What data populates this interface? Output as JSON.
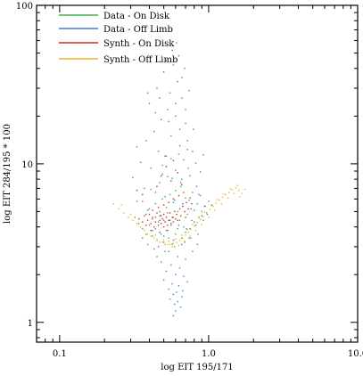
{
  "chart_data": {
    "type": "scatter",
    "title": "",
    "xlabel": "log EIT 195/171",
    "ylabel": "log EIT 284/195 * 100",
    "xscale": "log",
    "yscale": "log",
    "xlim": [
      0.07,
      10.0
    ],
    "ylim": [
      0.75,
      100
    ],
    "xticks": [
      {
        "value": 0.1,
        "label": "0.1"
      },
      {
        "value": 1.0,
        "label": "1.0"
      },
      {
        "value": 10.0,
        "label": "10.0"
      }
    ],
    "yticks": [
      {
        "value": 1,
        "label": "1"
      },
      {
        "value": 10,
        "label": "10"
      },
      {
        "value": 100,
        "label": "100"
      }
    ],
    "grid": false,
    "legend_position": "top-left",
    "series": [
      {
        "name": "Data - On Disk",
        "color": "#3cb043",
        "points": [
          [
            0.32,
            4.6
          ],
          [
            0.34,
            4.2
          ],
          [
            0.36,
            3.9
          ],
          [
            0.38,
            4.8
          ],
          [
            0.38,
            3.6
          ],
          [
            0.4,
            5.2
          ],
          [
            0.4,
            4.1
          ],
          [
            0.42,
            3.5
          ],
          [
            0.42,
            4.6
          ],
          [
            0.44,
            5.6
          ],
          [
            0.44,
            3.9
          ],
          [
            0.45,
            3.3
          ],
          [
            0.46,
            4.3
          ],
          [
            0.47,
            5.0
          ],
          [
            0.48,
            3.6
          ],
          [
            0.49,
            6.0
          ],
          [
            0.5,
            4.4
          ],
          [
            0.5,
            3.2
          ],
          [
            0.52,
            5.3
          ],
          [
            0.52,
            3.8
          ],
          [
            0.53,
            4.9
          ],
          [
            0.54,
            3.4
          ],
          [
            0.55,
            6.4
          ],
          [
            0.56,
            4.1
          ],
          [
            0.57,
            3.1
          ],
          [
            0.58,
            5.7
          ],
          [
            0.58,
            4.6
          ],
          [
            0.6,
            3.6
          ],
          [
            0.6,
            6.8
          ],
          [
            0.62,
            5.0
          ],
          [
            0.62,
            3.9
          ],
          [
            0.64,
            4.4
          ],
          [
            0.65,
            7.2
          ],
          [
            0.66,
            3.4
          ],
          [
            0.67,
            5.4
          ],
          [
            0.68,
            4.0
          ],
          [
            0.7,
            6.1
          ],
          [
            0.7,
            3.7
          ],
          [
            0.72,
            4.8
          ],
          [
            0.74,
            5.9
          ],
          [
            0.75,
            3.9
          ],
          [
            0.77,
            4.4
          ],
          [
            0.78,
            6.6
          ],
          [
            0.8,
            5.1
          ],
          [
            0.82,
            4.1
          ],
          [
            0.84,
            5.6
          ],
          [
            0.86,
            4.6
          ],
          [
            0.88,
            6.3
          ],
          [
            0.9,
            5.0
          ],
          [
            0.92,
            4.4
          ],
          [
            0.95,
            5.4
          ],
          [
            0.98,
            4.8
          ],
          [
            1.0,
            5.8
          ],
          [
            0.41,
            6.9
          ],
          [
            0.47,
            7.6
          ],
          [
            0.53,
            8.3
          ],
          [
            0.6,
            9.1
          ],
          [
            0.66,
            8.0
          ],
          [
            0.36,
            5.8
          ],
          [
            0.43,
            2.9
          ],
          [
            0.51,
            2.8
          ],
          [
            0.59,
            3.0
          ],
          [
            0.69,
            3.2
          ],
          [
            0.76,
            3.4
          ],
          [
            0.63,
            11.5
          ],
          [
            0.56,
            10.8
          ],
          [
            0.49,
            9.8
          ],
          [
            0.73,
            9.4
          ],
          [
            0.39,
            3.1
          ],
          [
            0.85,
            3.6
          ]
        ]
      },
      {
        "name": "Data - Off Limb",
        "color": "#3b7fd4",
        "points": [
          [
            0.4,
            24
          ],
          [
            0.45,
            30
          ],
          [
            0.5,
            38
          ],
          [
            0.55,
            28
          ],
          [
            0.58,
            42
          ],
          [
            0.62,
            33
          ],
          [
            0.66,
            26
          ],
          [
            0.48,
            19
          ],
          [
            0.53,
            22
          ],
          [
            0.6,
            20
          ],
          [
            0.7,
            18
          ],
          [
            0.43,
            16
          ],
          [
            0.38,
            14
          ],
          [
            0.56,
            15
          ],
          [
            0.64,
            13
          ],
          [
            0.72,
            14
          ],
          [
            0.78,
            12
          ],
          [
            0.46,
            12
          ],
          [
            0.52,
            11.2
          ],
          [
            0.68,
            10.6
          ],
          [
            0.35,
            10.2
          ],
          [
            0.41,
            9.4
          ],
          [
            0.49,
            8.6
          ],
          [
            0.57,
            8.1
          ],
          [
            0.65,
            7.6
          ],
          [
            0.75,
            8.4
          ],
          [
            0.83,
            7.2
          ],
          [
            0.31,
            8.2
          ],
          [
            0.37,
            7.0
          ],
          [
            0.44,
            6.6
          ],
          [
            0.51,
            6.2
          ],
          [
            0.59,
            5.9
          ],
          [
            0.67,
            5.6
          ],
          [
            0.76,
            5.2
          ],
          [
            0.86,
            6.4
          ],
          [
            0.94,
            5.4
          ],
          [
            0.33,
            5.8
          ],
          [
            0.39,
            5.1
          ],
          [
            0.47,
            4.7
          ],
          [
            0.55,
            4.4
          ],
          [
            0.63,
            4.1
          ],
          [
            0.71,
            3.9
          ],
          [
            0.8,
            4.3
          ],
          [
            0.9,
            4.7
          ],
          [
            0.42,
            3.8
          ],
          [
            0.5,
            3.5
          ],
          [
            0.58,
            3.3
          ],
          [
            0.66,
            3.1
          ],
          [
            0.74,
            3.4
          ],
          [
            0.46,
            3.0
          ],
          [
            0.54,
            2.8
          ],
          [
            0.62,
            2.6
          ],
          [
            0.7,
            2.5
          ],
          [
            0.48,
            2.4
          ],
          [
            0.56,
            2.3
          ],
          [
            0.64,
            2.2
          ],
          [
            0.52,
            2.1
          ],
          [
            0.6,
            2.0
          ],
          [
            0.68,
            1.95
          ],
          [
            0.5,
            1.85
          ],
          [
            0.57,
            1.75
          ],
          [
            0.63,
            1.7
          ],
          [
            0.54,
            1.62
          ],
          [
            0.61,
            1.55
          ],
          [
            0.58,
            1.5
          ],
          [
            0.66,
            1.45
          ],
          [
            0.55,
            1.4
          ],
          [
            0.62,
            1.35
          ],
          [
            0.59,
            1.3
          ],
          [
            0.65,
            1.25
          ],
          [
            0.6,
            1.18
          ],
          [
            0.58,
            1.1
          ],
          [
            0.67,
            1.58
          ],
          [
            0.72,
            1.8
          ],
          [
            0.45,
            2.6
          ],
          [
            0.78,
            2.8
          ],
          [
            0.36,
            3.4
          ],
          [
            0.84,
            3.1
          ],
          [
            0.97,
            4.9
          ],
          [
            1.05,
            5.5
          ],
          [
            0.88,
            8.9
          ],
          [
            0.82,
            10.1
          ],
          [
            0.72,
            12.3
          ],
          [
            0.64,
            16.5
          ],
          [
            0.54,
            18.5
          ],
          [
            0.6,
            24
          ],
          [
            0.7,
            22
          ],
          [
            0.47,
            26
          ],
          [
            0.66,
            35
          ],
          [
            0.52,
            45
          ],
          [
            0.57,
            52
          ],
          [
            0.63,
            48
          ],
          [
            0.74,
            29
          ],
          [
            0.79,
            16.5
          ],
          [
            0.44,
            21
          ],
          [
            0.33,
            12.8
          ],
          [
            0.92,
            11.4
          ],
          [
            0.39,
            28
          ],
          [
            0.69,
            40
          ],
          [
            0.61,
            58
          ]
        ]
      },
      {
        "name": "Synth - On Disk",
        "color": "#d42a2a",
        "points": [
          [
            0.34,
            4.5
          ],
          [
            0.36,
            4.3
          ],
          [
            0.37,
            4.7
          ],
          [
            0.38,
            4.1
          ],
          [
            0.39,
            4.4
          ],
          [
            0.4,
            4.8
          ],
          [
            0.41,
            4.2
          ],
          [
            0.42,
            4.5
          ],
          [
            0.43,
            4.0
          ],
          [
            0.44,
            4.6
          ],
          [
            0.44,
            4.3
          ],
          [
            0.45,
            4.9
          ],
          [
            0.46,
            4.1
          ],
          [
            0.47,
            4.4
          ],
          [
            0.48,
            4.7
          ],
          [
            0.48,
            4.2
          ],
          [
            0.49,
            4.5
          ],
          [
            0.5,
            4.0
          ],
          [
            0.5,
            4.8
          ],
          [
            0.51,
            4.3
          ],
          [
            0.52,
            4.6
          ],
          [
            0.53,
            4.1
          ],
          [
            0.54,
            4.4
          ],
          [
            0.55,
            4.9
          ],
          [
            0.56,
            4.2
          ],
          [
            0.57,
            4.6
          ],
          [
            0.58,
            4.3
          ],
          [
            0.59,
            5.0
          ],
          [
            0.6,
            4.5
          ],
          [
            0.61,
            4.8
          ],
          [
            0.62,
            4.4
          ],
          [
            0.64,
            5.2
          ],
          [
            0.65,
            4.7
          ],
          [
            0.67,
            5.4
          ],
          [
            0.69,
            5.0
          ],
          [
            0.71,
            5.7
          ],
          [
            0.73,
            5.2
          ],
          [
            0.75,
            6.1
          ],
          [
            0.77,
            5.6
          ],
          [
            0.42,
            5.1
          ],
          [
            0.46,
            5.3
          ],
          [
            0.5,
            5.5
          ],
          [
            0.54,
            5.7
          ],
          [
            0.58,
            6.0
          ],
          [
            0.63,
            6.3
          ],
          [
            0.68,
            6.6
          ],
          [
            0.48,
            8.4
          ],
          [
            0.52,
            9.6
          ],
          [
            0.56,
            7.8
          ],
          [
            0.45,
            7.2
          ],
          [
            0.62,
            8.8
          ],
          [
            0.66,
            7.4
          ],
          [
            0.41,
            3.8
          ],
          [
            0.47,
            3.7
          ],
          [
            0.53,
            3.8
          ],
          [
            0.33,
            6.8
          ],
          [
            0.36,
            6.4
          ],
          [
            0.7,
            4.6
          ],
          [
            0.58,
            10.5
          ],
          [
            0.51,
            11.2
          ]
        ]
      },
      {
        "name": "Synth - Off Limb",
        "color": "#f0b429",
        "points": [
          [
            0.23,
            5.6
          ],
          [
            0.25,
            5.2
          ],
          [
            0.27,
            4.9
          ],
          [
            0.29,
            4.6
          ],
          [
            0.31,
            4.4
          ],
          [
            0.33,
            4.2
          ],
          [
            0.35,
            4.0
          ],
          [
            0.37,
            3.8
          ],
          [
            0.39,
            3.6
          ],
          [
            0.41,
            3.5
          ],
          [
            0.43,
            3.4
          ],
          [
            0.45,
            3.3
          ],
          [
            0.47,
            3.2
          ],
          [
            0.49,
            3.2
          ],
          [
            0.51,
            3.1
          ],
          [
            0.53,
            3.1
          ],
          [
            0.55,
            3.1
          ],
          [
            0.58,
            3.15
          ],
          [
            0.61,
            3.2
          ],
          [
            0.64,
            3.3
          ],
          [
            0.67,
            3.4
          ],
          [
            0.7,
            3.55
          ],
          [
            0.73,
            3.7
          ],
          [
            0.76,
            3.85
          ],
          [
            0.8,
            4.05
          ],
          [
            0.84,
            4.25
          ],
          [
            0.88,
            4.45
          ],
          [
            0.92,
            4.65
          ],
          [
            0.97,
            4.9
          ],
          [
            1.02,
            5.15
          ],
          [
            1.07,
            5.4
          ],
          [
            1.12,
            5.65
          ],
          [
            1.18,
            5.9
          ],
          [
            1.24,
            6.15
          ],
          [
            1.3,
            6.4
          ],
          [
            1.37,
            6.6
          ],
          [
            1.44,
            6.85
          ],
          [
            1.52,
            7.05
          ],
          [
            1.6,
            6.8
          ],
          [
            1.68,
            6.5
          ],
          [
            0.6,
            3.35
          ],
          [
            0.66,
            3.55
          ],
          [
            0.72,
            3.85
          ],
          [
            0.78,
            4.15
          ],
          [
            0.86,
            4.55
          ],
          [
            0.94,
            4.95
          ],
          [
            1.04,
            5.45
          ],
          [
            1.14,
            5.95
          ],
          [
            1.26,
            6.45
          ],
          [
            1.4,
            6.95
          ],
          [
            0.57,
            3.0
          ],
          [
            0.63,
            3.05
          ],
          [
            0.69,
            3.25
          ],
          [
            0.75,
            3.5
          ],
          [
            0.82,
            3.8
          ],
          [
            0.9,
            4.15
          ],
          [
            1.0,
            4.6
          ],
          [
            1.1,
            5.1
          ],
          [
            1.22,
            5.6
          ],
          [
            1.35,
            6.1
          ],
          [
            1.48,
            6.5
          ],
          [
            1.62,
            6.2
          ],
          [
            1.75,
            6.9
          ],
          [
            0.26,
            5.5
          ],
          [
            0.3,
            4.8
          ],
          [
            0.34,
            4.45
          ],
          [
            0.44,
            3.55
          ],
          [
            0.5,
            3.3
          ],
          [
            0.54,
            3.25
          ],
          [
            1.56,
            7.3
          ]
        ]
      }
    ]
  }
}
